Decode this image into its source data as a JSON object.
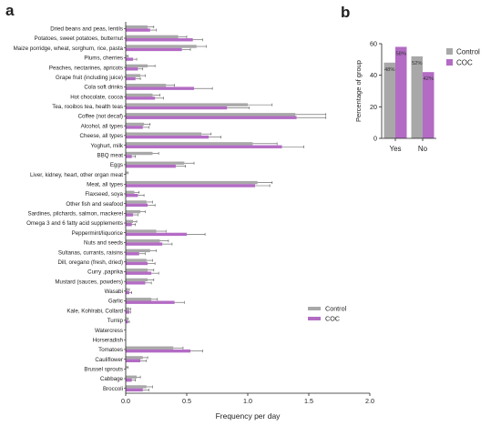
{
  "panels": {
    "a_label": "a",
    "b_label": "b"
  },
  "colors": {
    "control": "#a8a8a8",
    "coc": "#b36bc4",
    "axis": "#222222",
    "error_bar": "#555555"
  },
  "chart_data": [
    {
      "type": "bar",
      "orientation": "horizontal",
      "xlabel": "Frequency per day",
      "xlim": [
        0,
        2.0
      ],
      "xticks": [
        "0.0",
        "0.5",
        "1.0",
        "1.5",
        "2.0"
      ],
      "legend_position": "lower-right",
      "categories": [
        "Dried beans and peas, lentils",
        "Potatoes, sweet potatoes, butternut",
        "Maize porridge, wheat, sorghum, rice, pasta",
        "Plums, cherries",
        "Peaches, nectarines, apricots",
        "Grape fruit (including juice)",
        "Cola soft drinks",
        "Hot chocolate, cocoa",
        "Tea, rooibos tea, health teas",
        "Coffee (not decaf)",
        "Alcohol, all types",
        "Cheese, all types",
        "Yoghurt, milk",
        "BBQ meat",
        "Eggs",
        "Liver, kidney, heart, other organ meat",
        "Meat, all types",
        "Flaxseed, soya",
        "Other fish and seafood",
        "Sardines, pilchards, salmon, mackerel",
        "Omega 3 and 6 fatty acid supplements",
        "Peppermint/liquorice",
        "Nuts and seeds",
        "Sultanas, currants, raisins",
        "Dill, oregano (fresh, dried)",
        "Curry ,paprika",
        "Mustard (sauces, powders)",
        "Wasabi",
        "Garlic",
        "Kale, Kohlrabi, Collard",
        "Turnip",
        "Watercress",
        "Horseradish",
        "Tomatoes",
        "Cauliflower",
        "Brussel sprouts",
        "Cabbage",
        "Broccoli"
      ],
      "series": [
        {
          "name": "Control",
          "values": [
            0.18,
            0.43,
            0.58,
            0.01,
            0.18,
            0.12,
            0.33,
            0.22,
            1.0,
            1.39,
            0.15,
            0.62,
            1.04,
            0.22,
            0.48,
            0.01,
            1.08,
            0.07,
            0.17,
            0.12,
            0.06,
            0.25,
            0.28,
            0.2,
            0.17,
            0.18,
            0.18,
            0.02,
            0.21,
            0.03,
            0.01,
            0.0,
            0.0,
            0.39,
            0.14,
            0.01,
            0.09,
            0.17
          ],
          "errors": [
            0.05,
            0.07,
            0.08,
            0.01,
            0.06,
            0.04,
            0.07,
            0.06,
            0.2,
            0.25,
            0.05,
            0.08,
            0.2,
            0.05,
            0.08,
            0.01,
            0.12,
            0.04,
            0.05,
            0.04,
            0.03,
            0.08,
            0.07,
            0.05,
            0.05,
            0.05,
            0.05,
            0.01,
            0.05,
            0.01,
            0.01,
            0.0,
            0.0,
            0.08,
            0.04,
            0.01,
            0.03,
            0.05
          ]
        },
        {
          "name": "COC",
          "values": [
            0.2,
            0.55,
            0.46,
            0.06,
            0.1,
            0.08,
            0.56,
            0.24,
            0.83,
            1.4,
            0.14,
            0.68,
            1.28,
            0.05,
            0.41,
            0.0,
            1.06,
            0.1,
            0.18,
            0.06,
            0.05,
            0.5,
            0.3,
            0.11,
            0.18,
            0.21,
            0.16,
            0.03,
            0.4,
            0.03,
            0.02,
            0.0,
            0.0,
            0.53,
            0.12,
            0.0,
            0.05,
            0.14
          ],
          "errors": [
            0.05,
            0.08,
            0.07,
            0.03,
            0.04,
            0.04,
            0.15,
            0.07,
            0.18,
            0.24,
            0.05,
            0.1,
            0.18,
            0.03,
            0.08,
            0.0,
            0.12,
            0.05,
            0.06,
            0.04,
            0.03,
            0.15,
            0.08,
            0.05,
            0.06,
            0.06,
            0.05,
            0.02,
            0.08,
            0.01,
            0.01,
            0.0,
            0.0,
            0.1,
            0.05,
            0.0,
            0.03,
            0.05
          ]
        }
      ]
    },
    {
      "type": "bar",
      "orientation": "vertical",
      "ylabel": "Percentage of group",
      "ylim": [
        0,
        60
      ],
      "yticks": [
        "0",
        "20",
        "40",
        "60"
      ],
      "categories": [
        "Yes",
        "No"
      ],
      "legend_position": "right",
      "series": [
        {
          "name": "Control",
          "values": [
            48,
            52
          ],
          "labels": [
            "48%",
            "52%"
          ]
        },
        {
          "name": "COC",
          "values": [
            58,
            42
          ],
          "labels": [
            "58%",
            "42%"
          ]
        }
      ]
    }
  ]
}
